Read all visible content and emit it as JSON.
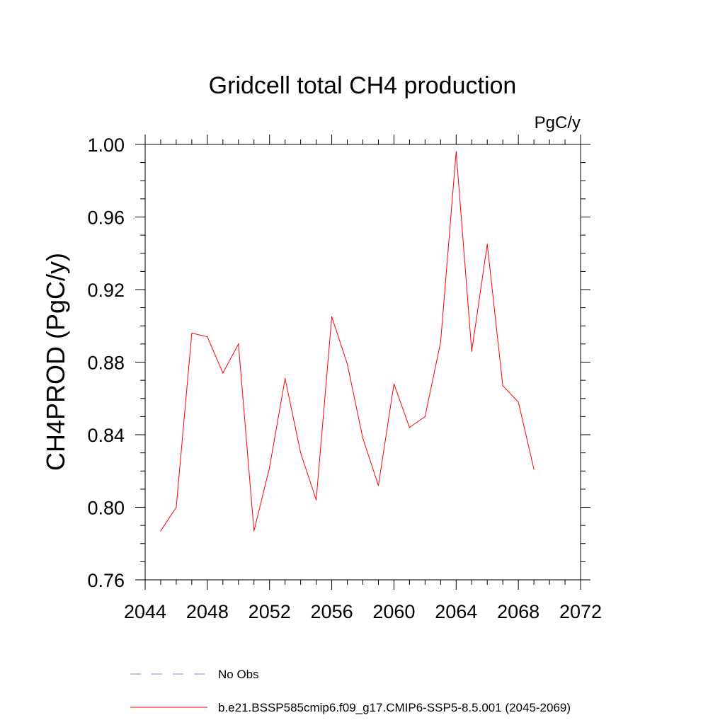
{
  "chart_data": {
    "type": "line",
    "title": "Gridcell total CH4 production",
    "units_label": "PgC/y",
    "ylabel": "CH4PROD  (PgC/y)",
    "xlabel": "",
    "xlim": [
      2044,
      2072
    ],
    "ylim": [
      0.76,
      1.0
    ],
    "x_major_ticks": [
      2044,
      2048,
      2052,
      2056,
      2060,
      2064,
      2068,
      2072
    ],
    "x_tick_labels": [
      "2044",
      "2048",
      "2052",
      "2056",
      "2060",
      "2064",
      "2068",
      "2072"
    ],
    "x_minor_step": 1,
    "y_major_ticks": [
      0.76,
      0.8,
      0.84,
      0.88,
      0.92,
      0.96,
      1.0
    ],
    "y_tick_labels": [
      "0.76",
      "0.80",
      "0.84",
      "0.88",
      "0.92",
      "0.96",
      "1.00"
    ],
    "y_minor_step": 0.01,
    "grid": false,
    "legend_position": "bottom",
    "series": [
      {
        "name": "b.e21.BSSP585cmip6.f09_g17.CMIP6-SSP5-8.5.001 (2045-2069)",
        "color": "#ff0000",
        "dash": "solid",
        "x": [
          2045,
          2046,
          2047,
          2048,
          2049,
          2050,
          2051,
          2052,
          2053,
          2054,
          2055,
          2056,
          2057,
          2058,
          2059,
          2060,
          2061,
          2062,
          2063,
          2064,
          2065,
          2066,
          2067,
          2068,
          2069
        ],
        "values": [
          0.787,
          0.8,
          0.896,
          0.894,
          0.874,
          0.89,
          0.787,
          0.822,
          0.871,
          0.83,
          0.804,
          0.905,
          0.879,
          0.838,
          0.812,
          0.868,
          0.844,
          0.85,
          0.891,
          0.996,
          0.886,
          0.945,
          0.867,
          0.858,
          0.821
        ]
      }
    ],
    "legend": [
      {
        "label": "No Obs",
        "color": "#8888cc",
        "dash": "dashed"
      },
      {
        "label": "b.e21.BSSP585cmip6.f09_g17.CMIP6-SSP5-8.5.001 (2045-2069)",
        "color": "#ff0000",
        "dash": "solid"
      }
    ]
  }
}
